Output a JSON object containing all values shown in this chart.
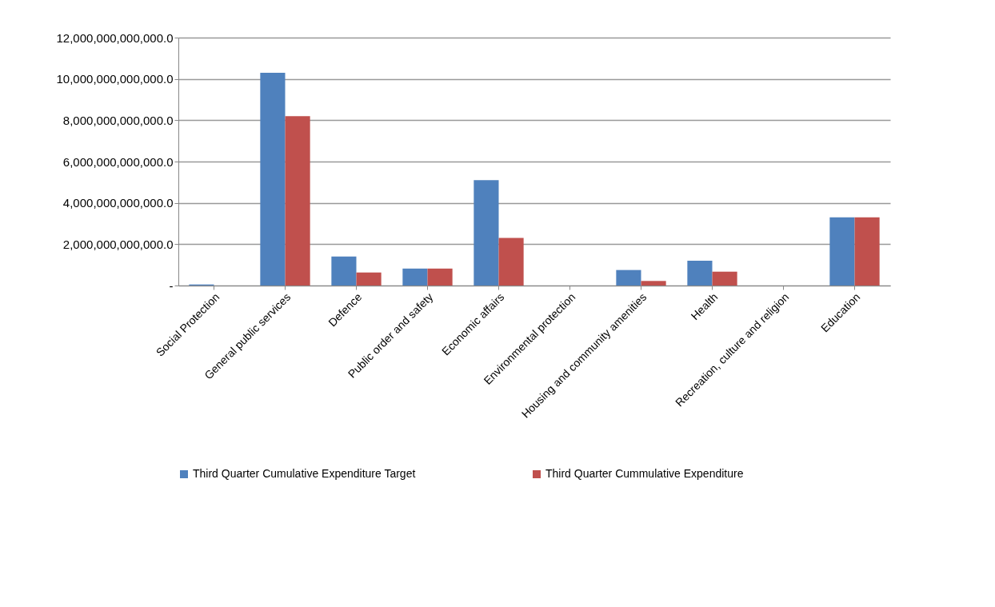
{
  "chart_data": {
    "type": "bar",
    "categories": [
      "Social Protection",
      "General public services",
      "Defence",
      "Public order and safety",
      "Economic affairs",
      "Environmental protection",
      "Housing and community amenities",
      "Health",
      "Recreation, culture and religion",
      "Education"
    ],
    "series": [
      {
        "name": "Third Quarter Cumulative Expenditure  Target",
        "color": "#4f81bd",
        "values": [
          50000000000,
          10300000000000,
          1400000000000,
          820000000000,
          5100000000000,
          null,
          750000000000,
          1200000000000,
          null,
          3300000000000
        ]
      },
      {
        "name": "Third Quarter Cummulative Expenditure",
        "color": "#c0504d",
        "values": [
          null,
          8200000000000,
          630000000000,
          820000000000,
          2300000000000,
          null,
          220000000000,
          670000000000,
          null,
          3300000000000
        ]
      }
    ],
    "ylim": [
      0,
      12000000000000
    ],
    "yticks": [
      {
        "value": 0,
        "label": "-"
      },
      {
        "value": 2000000000000,
        "label": "2,000,000,000,000.0"
      },
      {
        "value": 4000000000000,
        "label": "4,000,000,000,000.0"
      },
      {
        "value": 6000000000000,
        "label": "6,000,000,000,000.0"
      },
      {
        "value": 8000000000000,
        "label": "8,000,000,000,000.0"
      },
      {
        "value": 10000000000000,
        "label": "10,000,000,000,000.0"
      },
      {
        "value": 12000000000000,
        "label": "12,000,000,000,000.0"
      }
    ],
    "grid": "y",
    "legend": "bottom"
  }
}
